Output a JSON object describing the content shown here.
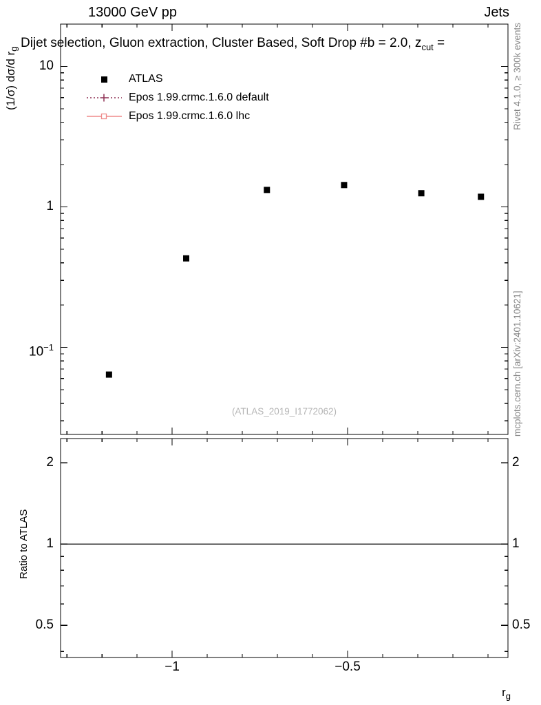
{
  "header": {
    "beam": "13000 GeV pp",
    "process": "Jets"
  },
  "margin_notes": {
    "rivet": "Rivet 4.1.0, ≥ 300k events",
    "mcplots": "mcplots.cern.ch [arXiv:2401.10621]"
  },
  "chart_data": {
    "type": "scatter",
    "yscale": "log",
    "title": "Dijet selection, Gluon extraction, Cluster Based, Soft Drop #b = 2.0, z_cut =",
    "title_parts": {
      "text": "Dijet selection, Gluon extraction, Cluster Based, Soft Drop #b = 2.0, z",
      "sub": "cut",
      "suffix": " ="
    },
    "xlabel": "r_g",
    "xlabel_parts": {
      "text": "r",
      "sub": "g"
    },
    "ylabel": "(1/σ) dσ/d r_g",
    "ylabel_parts": {
      "text": "(1/σ) dσ/d r",
      "sub": "g"
    },
    "ratio_ylabel": "Ratio to ATLAS",
    "watermark": "(ATLAS_2019_I1772062)",
    "xlim": [
      -1.318,
      -0.043
    ],
    "ylim_main": [
      0.024,
      20
    ],
    "ylim_ratio": [
      0.38,
      2.46
    ],
    "ratio_ref": 1,
    "xtick_minor_step": 0.1,
    "xticks": [
      {
        "v": -1,
        "label": "−1"
      },
      {
        "v": -0.5,
        "label": "−0.5"
      }
    ],
    "yticks_main": [
      {
        "v": 10,
        "label": "10"
      },
      {
        "v": 1,
        "label": "1"
      },
      {
        "v": 0.1,
        "label": "10",
        "sup": "−1"
      }
    ],
    "yticks_ratio": [
      {
        "v": 2,
        "label": "2"
      },
      {
        "v": 1,
        "label": "1"
      },
      {
        "v": 0.5,
        "label": "0.5"
      }
    ],
    "series": [
      {
        "name": "ATLAS",
        "kind": "data",
        "marker": "filled-square",
        "color": "#000000",
        "x": [
          -1.18,
          -0.96,
          -0.73,
          -0.51,
          -0.29,
          -0.12
        ],
        "y": [
          0.064,
          0.43,
          1.32,
          1.43,
          1.25,
          1.18
        ]
      },
      {
        "name": "Epos 1.99.crmc.1.6.0 default",
        "kind": "mc",
        "line": "dotted",
        "marker": "open-cross",
        "color": "#8d2f52",
        "x": [],
        "y": []
      },
      {
        "name": "Epos 1.99.crmc.1.6.0 lhc",
        "kind": "mc",
        "line": "solid",
        "marker": "open-square",
        "color": "#ef8a8a",
        "x": [],
        "y": []
      }
    ]
  }
}
